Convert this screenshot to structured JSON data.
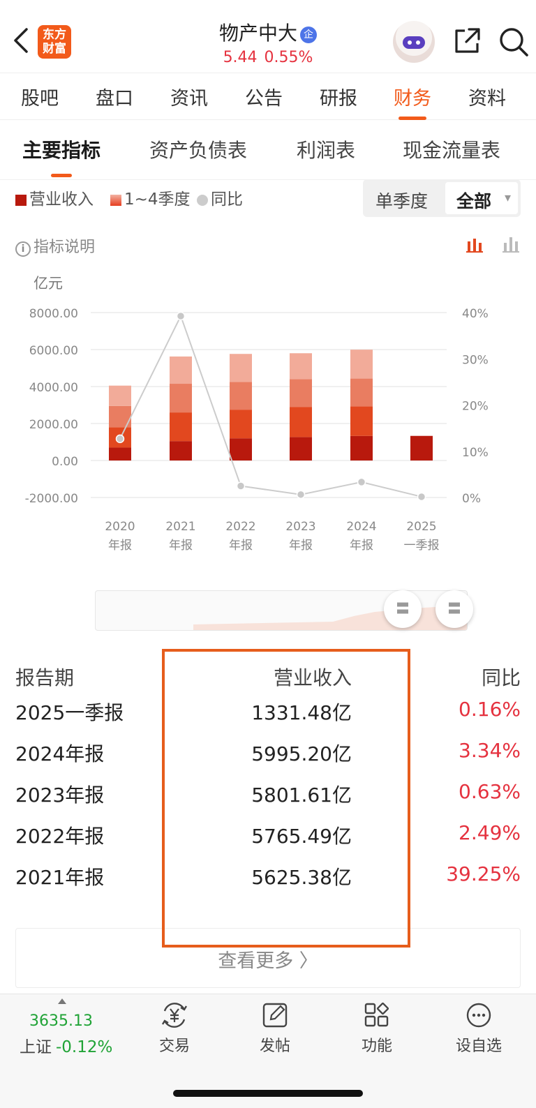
{
  "header": {
    "logo_line1": "东方",
    "logo_line2": "财富",
    "stock_name": "物产中大",
    "badge": "企",
    "price": "5.44",
    "change_pct": "0.55%"
  },
  "tabs": [
    "股吧",
    "盘口",
    "资讯",
    "公告",
    "研报",
    "财务",
    "资料"
  ],
  "subtabs": [
    "主要指标",
    "资产负债表",
    "利润表",
    "现金流量表"
  ],
  "legend": {
    "revenue": "营业收入",
    "quarters": "1~4季度",
    "yoy": "同比"
  },
  "period_selector": {
    "option_single": "单季度",
    "option_all": "全部",
    "caret": "▾"
  },
  "info_label": "指标说明",
  "info_icon": "i",
  "unit_label": "亿元",
  "chart_data": {
    "type": "bar",
    "stacked": true,
    "categories": [
      [
        "2020",
        "年报"
      ],
      [
        "2021",
        "年报"
      ],
      [
        "2022",
        "年报"
      ],
      [
        "2023",
        "年报"
      ],
      [
        "2024",
        "年报"
      ],
      [
        "2025",
        "一季报"
      ]
    ],
    "series": [
      {
        "name": "Q1",
        "color": "#b8190d",
        "values": [
          700,
          1050,
          1200,
          1270,
          1331,
          1331
        ]
      },
      {
        "name": "Q2",
        "color": "#e2481f",
        "values": [
          1100,
          1550,
          1550,
          1630,
          1600,
          0
        ]
      },
      {
        "name": "Q3",
        "color": "#e97d61",
        "values": [
          1150,
          1550,
          1500,
          1500,
          1500,
          0
        ]
      },
      {
        "name": "Q4",
        "color": "#f2ab99",
        "values": [
          1100,
          1475,
          1515,
          1402,
          1564,
          0
        ]
      }
    ],
    "line": {
      "name": "同比",
      "color": "#cccccc",
      "values": [
        12.7,
        39.25,
        2.49,
        0.63,
        3.34,
        0.16
      ]
    },
    "ylim": [
      -2000,
      8000
    ],
    "y_ticks": [
      "8000.00",
      "6000.00",
      "4000.00",
      "2000.00",
      "0.00",
      "-2000.00"
    ],
    "y2lim": [
      0,
      40
    ],
    "y2_ticks": [
      "40%",
      "30%",
      "20%",
      "10%",
      "0%"
    ],
    "grid": true
  },
  "slider": {
    "handle_glyph": "〓"
  },
  "table": {
    "headers": {
      "period": "报告期",
      "revenue": "营业收入",
      "yoy": "同比"
    },
    "rows": [
      {
        "period": "2025一季报",
        "revenue": "1331.48亿",
        "yoy": "0.16%"
      },
      {
        "period": "2024年报",
        "revenue": "5995.20亿",
        "yoy": "3.34%"
      },
      {
        "period": "2023年报",
        "revenue": "5801.61亿",
        "yoy": "0.63%"
      },
      {
        "period": "2022年报",
        "revenue": "5765.49亿",
        "yoy": "2.49%"
      },
      {
        "period": "2021年报",
        "revenue": "5625.38亿",
        "yoy": "39.25%"
      }
    ]
  },
  "more_button": "查看更多 〉",
  "bottom_bar": {
    "index_value": "3635.13",
    "index_name": "上证",
    "index_change": "-0.12%",
    "items": [
      "交易",
      "发帖",
      "功能",
      "设自选"
    ]
  },
  "colors": {
    "accent": "#f25a1a",
    "up": "#e5323f",
    "down": "#20a336"
  }
}
